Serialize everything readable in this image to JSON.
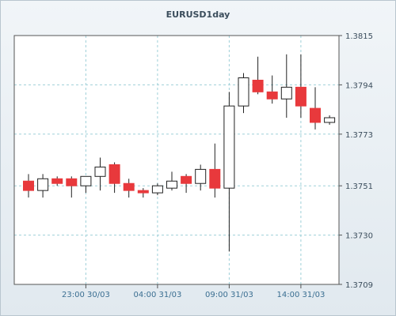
{
  "chart_data": {
    "type": "candlestick",
    "title": "EURUSD1day",
    "ylim": [
      1.3709,
      1.3815
    ],
    "y_ticks": [
      "1.3815",
      "1.3794",
      "1.3773",
      "1.3751",
      "1.3730",
      "1.3709"
    ],
    "x_tick_labels": [
      "23:00 30/03",
      "04:00 31/03",
      "09:00 31/03",
      "14:00 31/03"
    ],
    "grid": true,
    "colors": {
      "up": "#ffffff",
      "down": "#e8393c",
      "wick": "#222222",
      "grid": "#9fd0d8",
      "text": "#3b4d5c"
    },
    "candles": [
      {
        "open": 1.3753,
        "high": 1.3756,
        "low": 1.3746,
        "close": 1.3749
      },
      {
        "open": 1.3749,
        "high": 1.3756,
        "low": 1.3746,
        "close": 1.3754
      },
      {
        "open": 1.3754,
        "high": 1.3755,
        "low": 1.3751,
        "close": 1.3752
      },
      {
        "open": 1.3754,
        "high": 1.3755,
        "low": 1.3746,
        "close": 1.3751
      },
      {
        "open": 1.3751,
        "high": 1.3755,
        "low": 1.3748,
        "close": 1.3755
      },
      {
        "open": 1.3755,
        "high": 1.3763,
        "low": 1.3749,
        "close": 1.3759
      },
      {
        "open": 1.376,
        "high": 1.3761,
        "low": 1.3748,
        "close": 1.3752
      },
      {
        "open": 1.3752,
        "high": 1.3754,
        "low": 1.3746,
        "close": 1.3749
      },
      {
        "open": 1.3749,
        "high": 1.375,
        "low": 1.3746,
        "close": 1.3748
      },
      {
        "open": 1.3748,
        "high": 1.3752,
        "low": 1.3747,
        "close": 1.3751
      },
      {
        "open": 1.375,
        "high": 1.3757,
        "low": 1.3749,
        "close": 1.3753
      },
      {
        "open": 1.3755,
        "high": 1.3756,
        "low": 1.3748,
        "close": 1.3752
      },
      {
        "open": 1.3752,
        "high": 1.376,
        "low": 1.3749,
        "close": 1.3758
      },
      {
        "open": 1.3758,
        "high": 1.3769,
        "low": 1.3746,
        "close": 1.375
      },
      {
        "open": 1.375,
        "high": 1.3791,
        "low": 1.3723,
        "close": 1.3785
      },
      {
        "open": 1.3785,
        "high": 1.3799,
        "low": 1.3782,
        "close": 1.3797
      },
      {
        "open": 1.3796,
        "high": 1.3806,
        "low": 1.379,
        "close": 1.3791
      },
      {
        "open": 1.3791,
        "high": 1.3798,
        "low": 1.3786,
        "close": 1.3788
      },
      {
        "open": 1.3788,
        "high": 1.3807,
        "low": 1.378,
        "close": 1.3793
      },
      {
        "open": 1.3793,
        "high": 1.3807,
        "low": 1.378,
        "close": 1.3785
      },
      {
        "open": 1.3784,
        "high": 1.3793,
        "low": 1.3775,
        "close": 1.3778
      },
      {
        "open": 1.3778,
        "high": 1.3781,
        "low": 1.3777,
        "close": 1.378
      }
    ]
  }
}
